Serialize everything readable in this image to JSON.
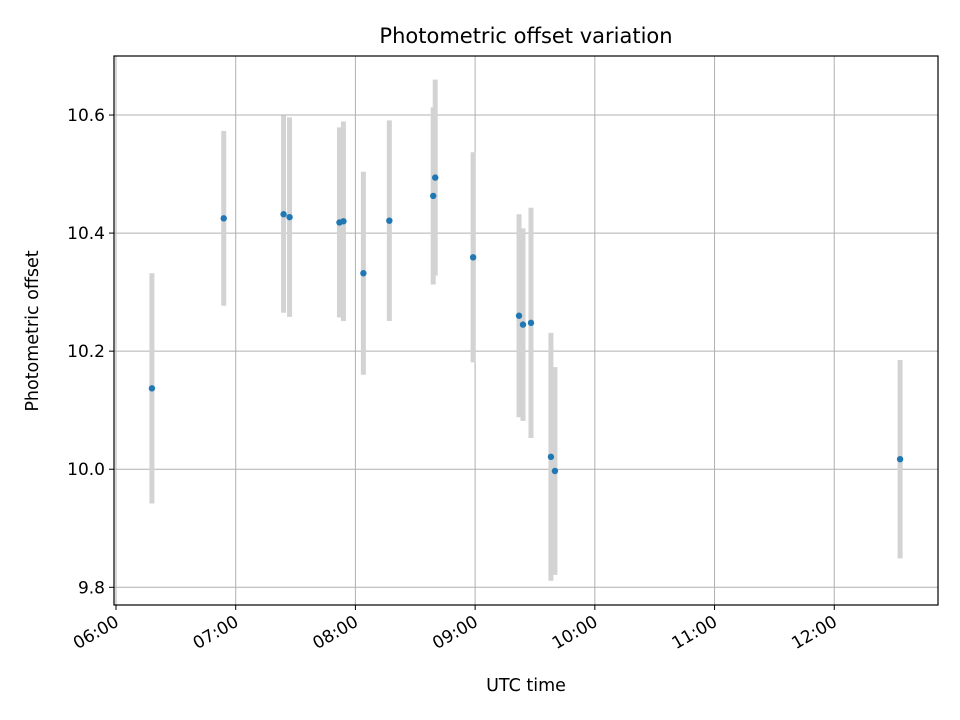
{
  "chart_data": {
    "type": "scatter",
    "title": "Photometric offset variation",
    "xlabel": "UTC time",
    "ylabel": "Photometric offset",
    "x_ticks": [
      "06:00",
      "07:00",
      "08:00",
      "09:00",
      "10:00",
      "11:00",
      "12:00"
    ],
    "y_ticks": [
      "9.8",
      "10.0",
      "10.2",
      "10.4",
      "10.6"
    ],
    "xlim": [
      "05:59",
      "12:52"
    ],
    "ylim": [
      9.77,
      10.7
    ],
    "grid": true,
    "colors": {
      "point": "#1f77b4",
      "error_bar": "#d3d3d3",
      "grid": "#b0b0b0"
    },
    "series": [
      {
        "points": [
          {
            "x": "06:18",
            "y": 10.137,
            "err": 0.195
          },
          {
            "x": "06:54",
            "y": 10.425,
            "err": 0.148
          },
          {
            "x": "07:24",
            "y": 10.432,
            "err": 0.167
          },
          {
            "x": "07:27",
            "y": 10.427,
            "err": 0.169
          },
          {
            "x": "07:52",
            "y": 10.418,
            "err": 0.161
          },
          {
            "x": "07:54",
            "y": 10.42,
            "err": 0.169
          },
          {
            "x": "08:04",
            "y": 10.332,
            "err": 0.172
          },
          {
            "x": "08:17",
            "y": 10.421,
            "err": 0.17
          },
          {
            "x": "08:39",
            "y": 10.463,
            "err": 0.15
          },
          {
            "x": "08:40",
            "y": 10.494,
            "err": 0.166
          },
          {
            "x": "08:59",
            "y": 10.359,
            "err": 0.178
          },
          {
            "x": "09:22",
            "y": 10.26,
            "err": 0.172
          },
          {
            "x": "09:24",
            "y": 10.245,
            "err": 0.163
          },
          {
            "x": "09:28",
            "y": 10.248,
            "err": 0.195
          },
          {
            "x": "09:38",
            "y": 10.021,
            "err": 0.21
          },
          {
            "x": "09:40",
            "y": 9.997,
            "err": 0.176
          },
          {
            "x": "12:33",
            "y": 10.017,
            "err": 0.168
          }
        ]
      }
    ]
  }
}
